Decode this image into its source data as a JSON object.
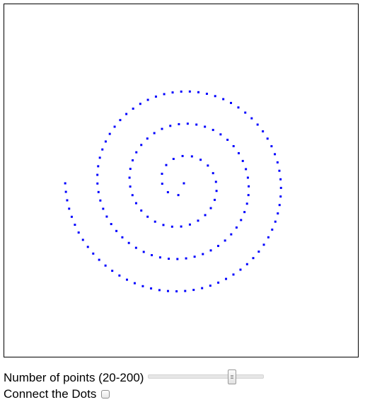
{
  "canvas": {
    "shape": "spiral",
    "dot_color": "#0000ff",
    "points_shown": 150
  },
  "controls": {
    "points_label": "Number of points (20-200)",
    "points_slider": {
      "min": 20,
      "max": 200,
      "value": 150
    },
    "connect_label": "Connect the Dots",
    "connect_checked": false
  },
  "colors": {
    "border": "#000000",
    "background": "#ffffff"
  }
}
